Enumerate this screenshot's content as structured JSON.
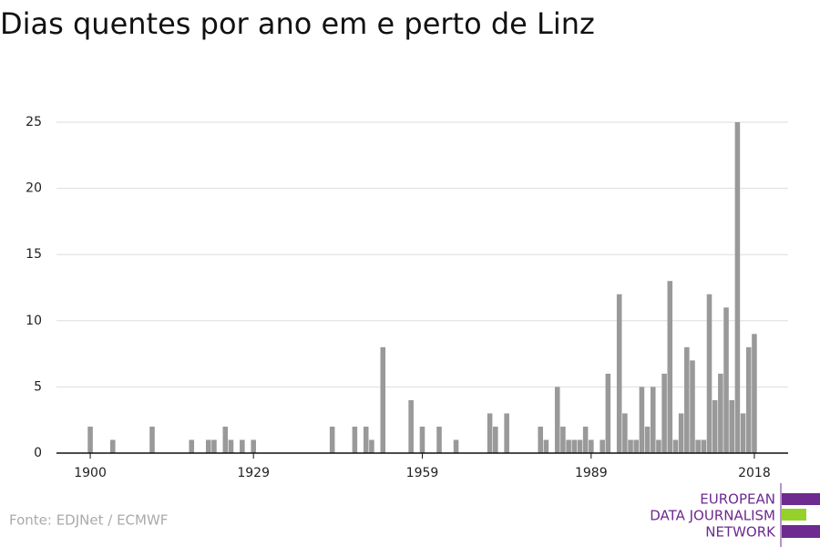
{
  "chart_data": {
    "type": "bar",
    "title": "Dias quentes por ano em e perto de Linz",
    "source": "Fonte: EDJNet / ECMWF",
    "logo": [
      "EUROPEAN",
      "DATA JOURNALISM",
      "NETWORK"
    ],
    "x": [
      1900,
      1904,
      1911,
      1918,
      1921,
      1922,
      1924,
      1925,
      1927,
      1929,
      1943,
      1947,
      1949,
      1950,
      1952,
      1957,
      1959,
      1962,
      1965,
      1971,
      1972,
      1974,
      1980,
      1981,
      1983,
      1984,
      1985,
      1986,
      1987,
      1988,
      1989,
      1991,
      1992,
      1994,
      1995,
      1996,
      1997,
      1998,
      1999,
      2000,
      2001,
      2002,
      2003,
      2004,
      2005,
      2006,
      2007,
      2008,
      2009,
      2010,
      2011,
      2012,
      2013,
      2014,
      2015,
      2016,
      2017,
      2018
    ],
    "values": [
      2,
      1,
      2,
      1,
      1,
      1,
      2,
      1,
      1,
      1,
      2,
      2,
      2,
      1,
      8,
      4,
      2,
      2,
      1,
      3,
      2,
      3,
      2,
      1,
      5,
      2,
      1,
      1,
      1,
      2,
      1,
      1,
      6,
      12,
      3,
      1,
      1,
      5,
      2,
      5,
      1,
      6,
      13,
      1,
      3,
      8,
      7,
      1,
      1,
      12,
      4,
      6,
      11,
      4,
      25,
      3,
      8,
      9
    ],
    "color": "#999999",
    "xlim": [
      1894,
      2024
    ],
    "xticks": [
      1900,
      1929,
      1959,
      1989,
      2018
    ],
    "ylim": [
      0,
      25
    ],
    "yticks": [
      0,
      5,
      10,
      15,
      20,
      25
    ],
    "grid": true
  }
}
